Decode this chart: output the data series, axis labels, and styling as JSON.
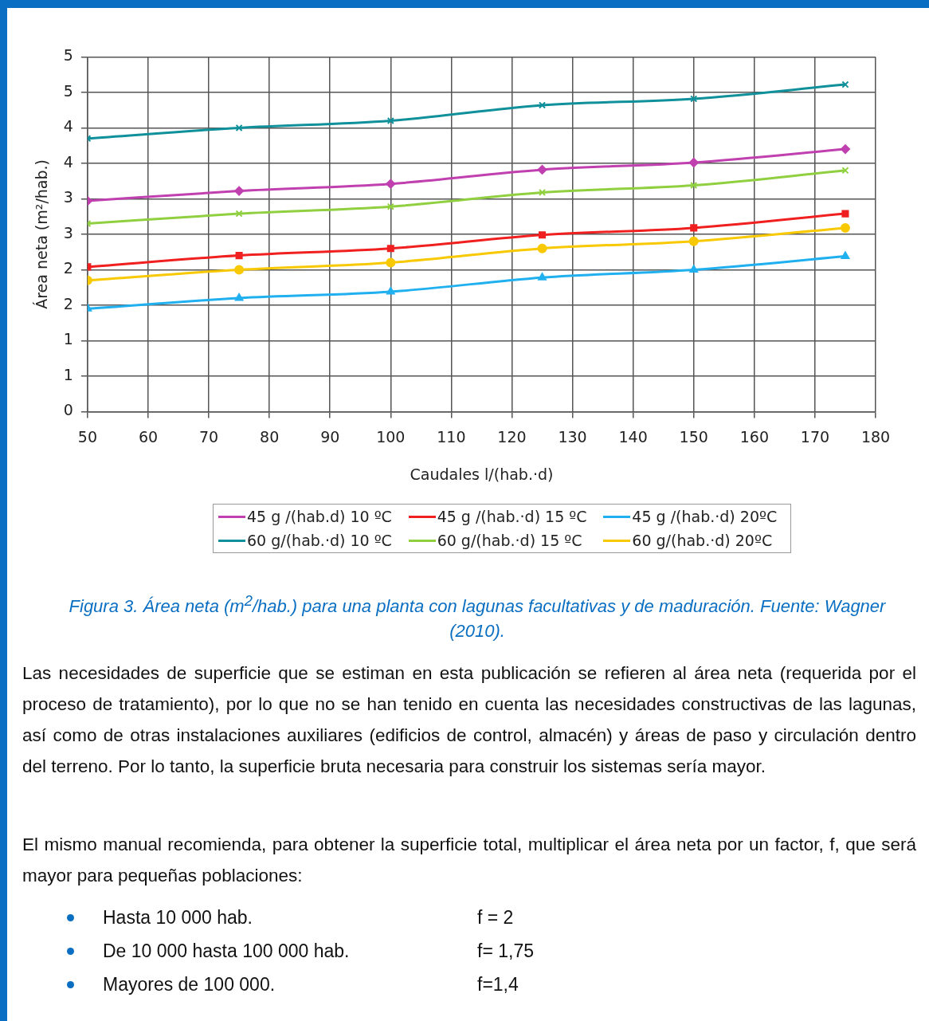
{
  "chart_data": {
    "type": "line",
    "xlabel": "Caudales l/(hab.·d)",
    "ylabel": "Área neta (m²/hab.)",
    "xlim": [
      50,
      180
    ],
    "xticks": [
      50,
      60,
      70,
      80,
      90,
      100,
      110,
      120,
      130,
      140,
      150,
      160,
      170,
      180
    ],
    "ylim": [
      0,
      5
    ],
    "yticks": [
      0,
      {
        "value": 0.5,
        "label": "1"
      },
      1,
      {
        "value": 1.5,
        "label": "2"
      },
      2,
      {
        "value": 2.5,
        "label": "3"
      },
      3,
      {
        "value": 3.5,
        "label": "4"
      },
      4,
      {
        "value": 4.5,
        "label": "5"
      },
      5
    ],
    "x": [
      50,
      75,
      100,
      125,
      150,
      175
    ],
    "grid": true,
    "legend": "bottom",
    "line_style": "solid",
    "series": [
      {
        "name": "45 g /(hab.d) 10 ºC",
        "color": "#c040b0",
        "marker": "diamond",
        "values": [
          2.97,
          3.11,
          3.21,
          3.41,
          3.51,
          3.7
        ]
      },
      {
        "name": "45 g /(hab.·d) 15 ºC",
        "color": "#f02020",
        "marker": "square",
        "values": [
          2.04,
          2.2,
          2.3,
          2.49,
          2.59,
          2.79
        ]
      },
      {
        "name": "45 g /(hab.·d) 20ºC",
        "color": "#20b0f0",
        "marker": "triangle",
        "values": [
          1.45,
          1.6,
          1.69,
          1.89,
          2.0,
          2.19
        ]
      },
      {
        "name": "60 g/(hab.·d) 10 ºC",
        "color": "#10909a",
        "marker": "cross",
        "values": [
          3.85,
          4.0,
          4.1,
          4.32,
          4.41,
          4.61
        ]
      },
      {
        "name": "60 g/(hab.·d) 15 ºC",
        "color": "#90d040",
        "marker": "cross",
        "values": [
          2.65,
          2.79,
          2.89,
          3.09,
          3.19,
          3.4
        ]
      },
      {
        "name": "60 g/(hab.·d) 20ºC",
        "color": "#f8c800",
        "marker": "circle",
        "values": [
          1.85,
          2.0,
          2.1,
          2.3,
          2.4,
          2.59
        ]
      }
    ],
    "annotations": [
      "Figura 3. Área neta (m$^{2}$/hab.) para una planta con lagunas facultativas y de maduración. Fuente: Wagner (2010).",
      "Las necesidades de superficie que se estiman en esta publicación se refieren al área neta (requerida por el proceso de tratamiento), por lo que no se han tenido en cuenta las necesidades constructivas de las lagunas, así como de otras instalaciones auxiliares (edificios de control, almacén) y áreas de paso y circulación dentro del terreno. Por lo tanto, la superficie bruta necesaria para construir los sistemas sería mayor.",
      "El mismo manual recomienda, para obtener la superficie total, multiplicar el área neta por un factor, f, que será mayor para pequeñas poblaciones:",
      "Hasta 10 000 hab.",
      "f = 2",
      "De 10 000 hasta 100 000 hab.",
      "f= 1,75",
      "Mayores de 100 000.",
      "f=1,4"
    ]
  }
}
